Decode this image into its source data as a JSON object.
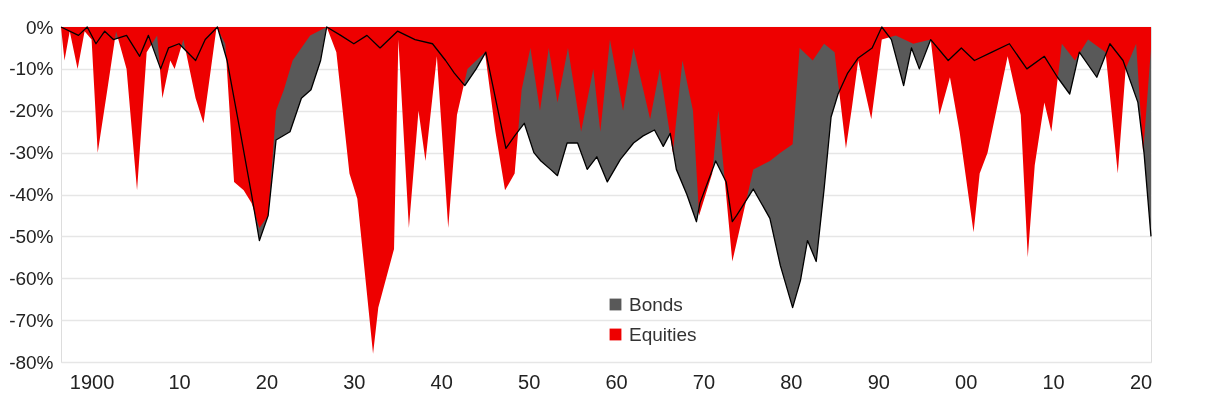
{
  "chart_data": {
    "type": "area",
    "xlim": [
      1896.5,
      2021.2
    ],
    "ylim": [
      -80,
      0
    ],
    "xticks": [
      {
        "value": 1900,
        "label": "1900"
      },
      {
        "value": 1910,
        "label": "10"
      },
      {
        "value": 1920,
        "label": "20"
      },
      {
        "value": 1930,
        "label": "30"
      },
      {
        "value": 1940,
        "label": "40"
      },
      {
        "value": 1950,
        "label": "50"
      },
      {
        "value": 1960,
        "label": "60"
      },
      {
        "value": 1970,
        "label": "70"
      },
      {
        "value": 1980,
        "label": "80"
      },
      {
        "value": 1990,
        "label": "90"
      },
      {
        "value": 2000,
        "label": "00"
      },
      {
        "value": 2010,
        "label": "10"
      },
      {
        "value": 2020,
        "label": "20"
      }
    ],
    "yticks": [
      {
        "value": 0,
        "label": "0%"
      },
      {
        "value": -10,
        "label": "-10%"
      },
      {
        "value": -20,
        "label": "-20%"
      },
      {
        "value": -30,
        "label": "-30%"
      },
      {
        "value": -40,
        "label": "-40%"
      },
      {
        "value": -50,
        "label": "-50%"
      },
      {
        "value": -60,
        "label": "-60%"
      },
      {
        "value": -70,
        "label": "-70%"
      },
      {
        "value": -80,
        "label": "-80%"
      }
    ],
    "grid": "y",
    "legend": "bottom",
    "series": [
      {
        "name": "Bonds",
        "color": "#595959",
        "x": [
          1896.5,
          1898.5,
          1899.5,
          1900.5,
          1901.5,
          1902.5,
          1904,
          1905.5,
          1906.5,
          1907.9,
          1908.8,
          1910,
          1911.9,
          1913,
          1914.4,
          1915.5,
          1917,
          1918.3,
          1919.2,
          1920.2,
          1921.1,
          1922.7,
          1924,
          1925.1,
          1926.2,
          1926.9,
          1928.5,
          1930,
          1931.5,
          1933,
          1935,
          1937,
          1939,
          1940.5,
          1941.5,
          1942.7,
          1944,
          1945.1,
          1946.3,
          1947.4,
          1948.4,
          1949.5,
          1950.6,
          1951.4,
          1952.5,
          1953.3,
          1954.4,
          1955.6,
          1956.7,
          1957.8,
          1959,
          1960.5,
          1962,
          1963.1,
          1964.4,
          1965.4,
          1966.2,
          1966.9,
          1968.1,
          1969.2,
          1969.6,
          1971.4,
          1972.6,
          1973.3,
          1973.8,
          1975.7,
          1977.6,
          1978.8,
          1980.2,
          1981.1,
          1981.9,
          1982.9,
          1983.8,
          1984.6,
          1985.4,
          1986.5,
          1987.7,
          1989.3,
          1990.4,
          1991.5,
          1992.9,
          1993.8,
          1994.7,
          1996,
          1998,
          1999.5,
          2001,
          2003,
          2005,
          2007,
          2009,
          2010.5,
          2011.9,
          2013,
          2015,
          2016.5,
          2018,
          2019.7,
          2020.4,
          2021.2
        ],
        "values": [
          0,
          -2,
          0,
          -4,
          -1,
          -3,
          -2,
          -7,
          -2,
          -10,
          -5,
          -4,
          -8,
          -3,
          0,
          -8,
          -25,
          -40,
          -51,
          -45,
          -27,
          -25,
          -17,
          -15,
          -8,
          0,
          -2,
          -4,
          -2,
          -5,
          -1,
          -3,
          -4,
          -8,
          -11,
          -14,
          -10,
          -6,
          -18,
          -29,
          -26,
          -23,
          -30,
          -32,
          -34,
          -35.5,
          -27.7,
          -27.7,
          -34,
          -31,
          -37,
          -31.6,
          -27.7,
          -26,
          -24.6,
          -28.5,
          -25.4,
          -34,
          -40,
          -46.5,
          -42,
          -32,
          -37,
          -46.5,
          -45,
          -38.7,
          -45.7,
          -57,
          -67,
          -60.5,
          -51,
          -56,
          -38.7,
          -21.5,
          -16,
          -11,
          -7.4,
          -5,
          0,
          -3,
          -14,
          -5,
          -10,
          -3,
          -8,
          -5,
          -8,
          -6,
          -4,
          -10,
          -7,
          -12,
          -16,
          -6,
          -12,
          -4,
          -8,
          -18,
          -30,
          -50
        ]
      },
      {
        "name": "Equities",
        "color": "#ee0000",
        "x": [
          1896.5,
          1896.9,
          1897.5,
          1898.4,
          1899.2,
          1900,
          1900.7,
          1901.8,
          1902.8,
          1904,
          1905.2,
          1906.3,
          1907.5,
          1908.1,
          1909,
          1909.5,
          1910.5,
          1911.9,
          1912.8,
          1914.3,
          1915.3,
          1916.3,
          1917.4,
          1918.3,
          1919.2,
          1920.2,
          1921.1,
          1922,
          1923,
          1924,
          1925,
          1926.9,
          1928,
          1929.5,
          1930.4,
          1932.2,
          1932.8,
          1934.6,
          1935.1,
          1936.3,
          1937.4,
          1938.2,
          1939.5,
          1940.8,
          1941.8,
          1943,
          1945,
          1946.2,
          1947.3,
          1948.4,
          1949.2,
          1950.2,
          1951.3,
          1952.3,
          1953.3,
          1954.5,
          1956,
          1957.4,
          1958.2,
          1959.3,
          1960.8,
          1962,
          1963.9,
          1965,
          1966.5,
          1967.6,
          1968.8,
          1969.5,
          1971,
          1971.7,
          1973.3,
          1974.5,
          1975.7,
          1977.6,
          1978.8,
          1980.2,
          1981,
          1982.5,
          1983.8,
          1985,
          1986.3,
          1987,
          1987.7,
          1989.2,
          1990.4,
          1992,
          1994,
          1996,
          1997,
          1998.2,
          1999.3,
          2000.9,
          2001.6,
          2002.5,
          2003.7,
          2004.8,
          2006.3,
          2007.1,
          2007.9,
          2009,
          2009.8,
          2011,
          2012.5,
          2014,
          2016,
          2017.4,
          2018.3,
          2019.5,
          2020.3,
          2021.2
        ],
        "values": [
          0,
          -8,
          -1,
          -10,
          -1,
          -3,
          -30,
          -15,
          -1,
          -10,
          -39,
          -6,
          -2,
          -17,
          -8,
          -10,
          -3,
          -17,
          -23,
          0,
          -4,
          -37,
          -39,
          -42,
          -48,
          -45,
          -20,
          -15,
          -8,
          -5,
          -2,
          0,
          -6,
          -35,
          -41,
          -78,
          -67,
          -53,
          -3,
          -48,
          -20,
          -32,
          -7,
          -48,
          -21,
          -10,
          -6,
          -25,
          -39,
          -35,
          -15,
          -5,
          -20,
          -5,
          -18,
          -5,
          -25,
          -10,
          -25,
          -3,
          -20,
          -5,
          -22,
          -10,
          -30,
          -8,
          -20,
          -45,
          -35,
          -20,
          -56,
          -45,
          -34,
          -32,
          -30,
          -28,
          -5,
          -8,
          -4,
          -6,
          -29,
          -19,
          -8,
          -22,
          -3,
          -2,
          -4,
          -3,
          -21,
          -12,
          -25,
          -49,
          -35,
          -30,
          -18,
          -7,
          -21,
          -55,
          -33,
          -18,
          -25,
          -4,
          -8,
          -3,
          -6,
          -35,
          -10,
          -4,
          -30,
          -5
        ]
      }
    ]
  }
}
